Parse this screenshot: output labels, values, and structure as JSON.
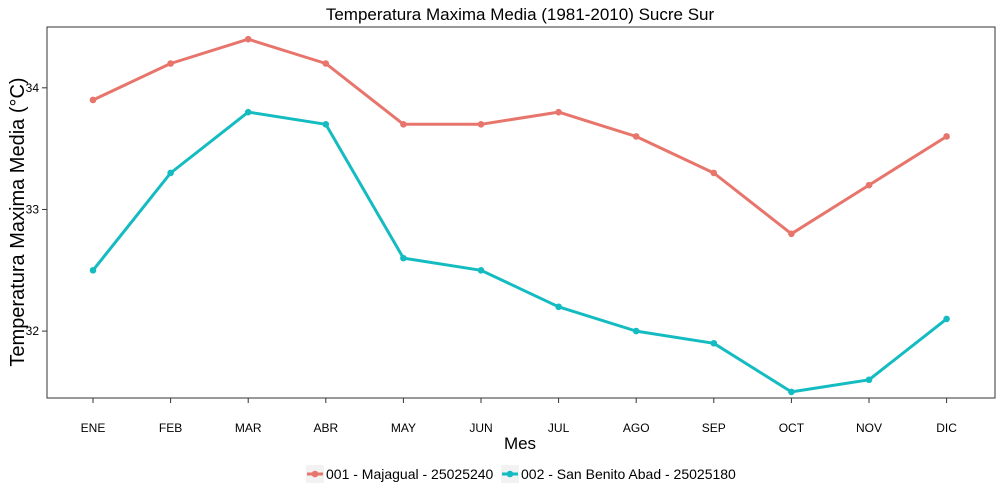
{
  "chart_data": {
    "type": "line",
    "title": "Temperatura Maxima Media (1981-2010)  Sucre Sur",
    "xlabel": "Mes",
    "ylabel": "Temperatura Maxima Media  (°C)",
    "categories": [
      "ENE",
      "FEB",
      "MAR",
      "ABR",
      "MAY",
      "JUN",
      "JUL",
      "AGO",
      "SEP",
      "OCT",
      "NOV",
      "DIC"
    ],
    "ylim": [
      31.45,
      34.5
    ],
    "yticks": [
      32,
      33,
      34
    ],
    "ytick_labels": [
      "32",
      "33",
      "34"
    ],
    "grid": false,
    "legend_position": "bottom",
    "series": [
      {
        "name": "001 - Majagual - 25025240",
        "color": "#E8756C",
        "values": [
          33.9,
          34.2,
          34.4,
          34.2,
          33.7,
          33.7,
          33.8,
          33.6,
          33.3,
          32.8,
          33.2,
          33.6
        ]
      },
      {
        "name": "002 - San Benito Abad - 25025180",
        "color": "#14BCC2",
        "values": [
          32.5,
          33.3,
          33.8,
          33.7,
          32.6,
          32.5,
          32.2,
          32.0,
          31.9,
          31.5,
          31.6,
          32.1
        ]
      }
    ]
  }
}
